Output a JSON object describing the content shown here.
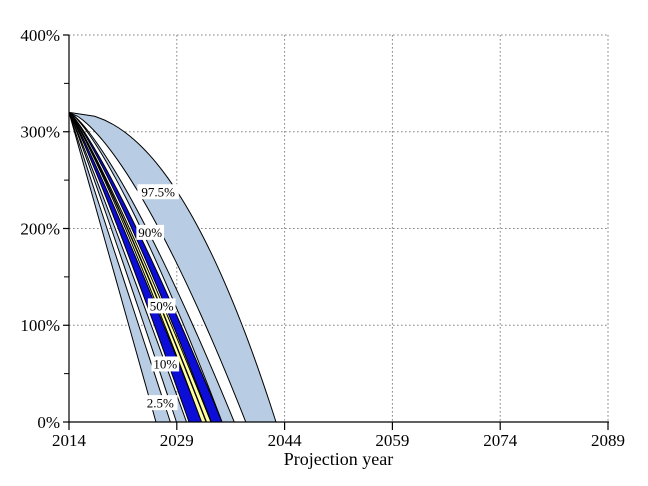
{
  "chart_data": {
    "type": "area",
    "subtype": "fan-chart-percentile-bands",
    "title": "",
    "xlabel": "Projection year",
    "ylabel": "",
    "x_range": [
      2014,
      2089
    ],
    "y_range": [
      0,
      400
    ],
    "y_unit": "%",
    "x_major_ticks": [
      2014,
      2029,
      2044,
      2059,
      2074,
      2089
    ],
    "x_tick_labels": [
      "2014",
      "2029",
      "2044",
      "2059",
      "2074",
      "2089"
    ],
    "y_major_ticks": [
      0,
      100,
      200,
      300,
      400
    ],
    "y_tick_labels": [
      "0%",
      "100%",
      "200%",
      "300%",
      "400%"
    ],
    "y_minor_ticks": [
      50,
      150,
      250,
      350
    ],
    "grid": {
      "style": "dotted",
      "vertical_at": [
        2029,
        2044,
        2059,
        2074,
        2089
      ],
      "horizontal_at": [
        100,
        200,
        300,
        400
      ]
    },
    "legend": "none",
    "start_point": {
      "year": 2014,
      "value_pct": 320
    },
    "bands": [
      {
        "name": "percentile-2.5-band",
        "label": "2.5%",
        "color_key": "light_blue",
        "zero_year_left": 2026.1,
        "zero_year_right": 2028.1,
        "p_left": 1.0,
        "p_right": 1.0
      },
      {
        "name": "percentile-10-band",
        "label": "10%",
        "color_key": "light_blue",
        "zero_year_left": 2028.95,
        "zero_year_right": 2030.35,
        "p_left": 1.05,
        "p_right": 1.05
      },
      {
        "name": "lower-dark-band",
        "label": "",
        "color_key": "dark_blue",
        "zero_year_left": 2030.7,
        "zero_year_right": 2032.5,
        "p_left": 1.1,
        "p_right": 1.1
      },
      {
        "name": "percentile-50-band",
        "label": "50%",
        "color_key": "yellow",
        "zero_year_left": 2032.45,
        "zero_year_right": 2033.75,
        "p_left": 1.15,
        "p_right": 1.15,
        "median_line": true,
        "median_zero_year": 2033.1,
        "median_p": 1.15
      },
      {
        "name": "upper-dark-band",
        "label": "",
        "color_key": "dark_blue",
        "zero_year_left": 2033.8,
        "zero_year_right": 2035.3,
        "p_left": 1.2,
        "p_right": 1.2
      },
      {
        "name": "percentile-90-band",
        "label": "90%",
        "color_key": "light_blue",
        "zero_year_left": 2035.3,
        "zero_year_right": 2037.0,
        "p_left": 1.3,
        "p_right": 1.3
      },
      {
        "name": "percentile-97.5-band",
        "label": "97.5%",
        "color_key": "light_blue",
        "zero_year_left": 2038.6,
        "zero_year_right": 2042.8,
        "p_left": 1.45,
        "p_right": 2.1
      }
    ],
    "annotations": [
      {
        "text": "97.5%",
        "year": 2026.4,
        "pct": 238.0
      },
      {
        "text": "90%",
        "year": 2025.3,
        "pct": 196.0
      },
      {
        "text": "50%",
        "year": 2026.9,
        "pct": 120.0
      },
      {
        "text": "10%",
        "year": 2027.4,
        "pct": 60.0
      },
      {
        "text": "2.5%",
        "year": 2026.7,
        "pct": 20.0
      }
    ],
    "colors": {
      "light_blue": "#b8cce4",
      "dark_blue": "#0d0dd8",
      "yellow": "#ffffa0",
      "outline": "#000000",
      "median": "#000000",
      "grid": "#858585",
      "axis": "#000000",
      "label_box": "#ffffff",
      "background": "#ffffff"
    }
  }
}
